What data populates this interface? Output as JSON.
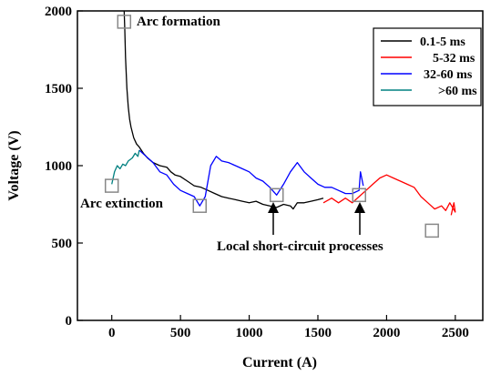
{
  "chart_data": {
    "type": "line",
    "xlabel": "Current (A)",
    "ylabel": "Voltage (V)",
    "xlim": [
      -250,
      2700
    ],
    "ylim": [
      0,
      2000
    ],
    "xticks": [
      0,
      500,
      1000,
      1500,
      2000,
      2500
    ],
    "yticks": [
      0,
      500,
      1000,
      1500,
      2000
    ],
    "grid": false,
    "legend_position": "top-right",
    "series": [
      {
        "name": "0.1-5 ms",
        "color": "#000000",
        "points": [
          [
            90,
            2000
          ],
          [
            95,
            1880
          ],
          [
            100,
            1700
          ],
          [
            110,
            1500
          ],
          [
            120,
            1380
          ],
          [
            130,
            1300
          ],
          [
            140,
            1250
          ],
          [
            160,
            1180
          ],
          [
            180,
            1140
          ],
          [
            200,
            1120
          ],
          [
            230,
            1080
          ],
          [
            260,
            1050
          ],
          [
            300,
            1020
          ],
          [
            350,
            1000
          ],
          [
            400,
            990
          ],
          [
            430,
            960
          ],
          [
            460,
            940
          ],
          [
            500,
            930
          ],
          [
            550,
            900
          ],
          [
            600,
            870
          ],
          [
            650,
            860
          ],
          [
            700,
            840
          ],
          [
            750,
            820
          ],
          [
            800,
            800
          ],
          [
            850,
            790
          ],
          [
            900,
            780
          ],
          [
            950,
            770
          ],
          [
            1000,
            760
          ],
          [
            1050,
            770
          ],
          [
            1100,
            750
          ],
          [
            1150,
            740
          ],
          [
            1200,
            730
          ],
          [
            1250,
            750
          ],
          [
            1300,
            740
          ],
          [
            1320,
            720
          ],
          [
            1350,
            760
          ],
          [
            1400,
            760
          ],
          [
            1450,
            770
          ],
          [
            1500,
            780
          ],
          [
            1540,
            790
          ]
        ]
      },
      {
        "name": "5-32 ms",
        "color": "#ff0000",
        "points": [
          [
            1540,
            760
          ],
          [
            1600,
            790
          ],
          [
            1650,
            760
          ],
          [
            1700,
            790
          ],
          [
            1750,
            760
          ],
          [
            1800,
            800
          ],
          [
            1850,
            840
          ],
          [
            1900,
            880
          ],
          [
            1950,
            920
          ],
          [
            2000,
            940
          ],
          [
            2050,
            920
          ],
          [
            2100,
            900
          ],
          [
            2150,
            880
          ],
          [
            2200,
            860
          ],
          [
            2250,
            800
          ],
          [
            2300,
            760
          ],
          [
            2350,
            720
          ],
          [
            2400,
            740
          ],
          [
            2430,
            710
          ],
          [
            2460,
            760
          ],
          [
            2480,
            730
          ],
          [
            2500,
            700
          ],
          [
            2490,
            760
          ],
          [
            2470,
            680
          ]
        ]
      },
      {
        "name": "32-60 ms",
        "color": "#0000ff",
        "points": [
          [
            200,
            1100
          ],
          [
            250,
            1060
          ],
          [
            300,
            1020
          ],
          [
            350,
            960
          ],
          [
            400,
            940
          ],
          [
            450,
            880
          ],
          [
            500,
            840
          ],
          [
            550,
            820
          ],
          [
            600,
            800
          ],
          [
            640,
            740
          ],
          [
            680,
            800
          ],
          [
            720,
            1000
          ],
          [
            760,
            1060
          ],
          [
            800,
            1030
          ],
          [
            850,
            1020
          ],
          [
            900,
            1000
          ],
          [
            950,
            980
          ],
          [
            1000,
            960
          ],
          [
            1050,
            920
          ],
          [
            1100,
            900
          ],
          [
            1150,
            860
          ],
          [
            1200,
            810
          ],
          [
            1250,
            880
          ],
          [
            1300,
            960
          ],
          [
            1350,
            1020
          ],
          [
            1400,
            960
          ],
          [
            1450,
            920
          ],
          [
            1500,
            880
          ],
          [
            1550,
            860
          ],
          [
            1600,
            860
          ],
          [
            1650,
            840
          ],
          [
            1700,
            820
          ],
          [
            1750,
            820
          ],
          [
            1800,
            840
          ],
          [
            1810,
            960
          ],
          [
            1830,
            870
          ]
        ]
      },
      {
        "name": ">60 ms",
        "color": "#008080",
        "points": [
          [
            0,
            880
          ],
          [
            20,
            960
          ],
          [
            40,
            1000
          ],
          [
            60,
            980
          ],
          [
            80,
            1010
          ],
          [
            100,
            1000
          ],
          [
            120,
            1030
          ],
          [
            150,
            1050
          ],
          [
            170,
            1080
          ],
          [
            190,
            1060
          ],
          [
            200,
            1100
          ]
        ]
      }
    ],
    "annotations": [
      {
        "text": "Arc formation",
        "x": 90,
        "y": 1930
      },
      {
        "text": "Arc extinction",
        "x": 0,
        "y": 870
      },
      {
        "text": "Local short-circuit processes"
      }
    ],
    "markers": [
      [
        90,
        1930
      ],
      [
        0,
        870
      ],
      [
        640,
        740
      ],
      [
        1200,
        810
      ],
      [
        1800,
        810
      ],
      [
        2330,
        580
      ]
    ]
  }
}
